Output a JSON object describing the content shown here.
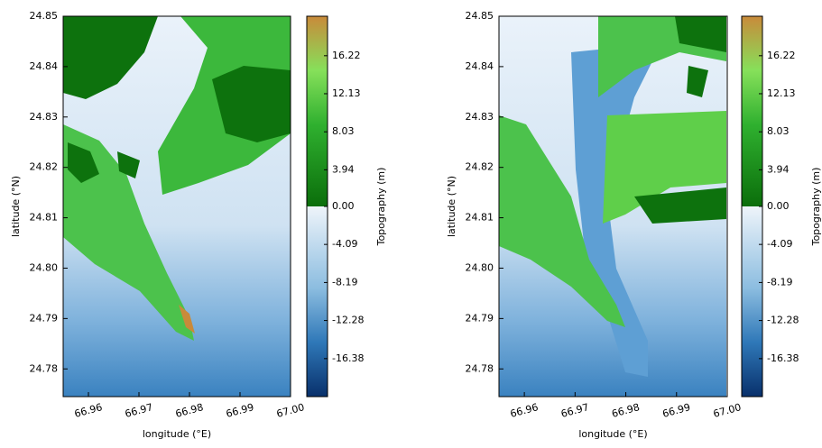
{
  "chart_data": [
    {
      "type": "heatmap",
      "xlabel": "longitude (°E)",
      "ylabel": "latitude (°N)",
      "xlim": [
        66.955,
        67.0
      ],
      "ylim": [
        24.7745,
        24.85
      ],
      "xticks": [
        66.96,
        66.97,
        66.98,
        66.99,
        {
          "value": 67.0,
          "label": "67.00"
        }
      ],
      "yticks": [
        24.78,
        24.79,
        {
          "value": 24.8,
          "label": "24.80"
        },
        24.81,
        24.82,
        24.83,
        24.84,
        24.85
      ],
      "colorbar": {
        "label": "Topography (m)",
        "clim": [
          -20.47,
          20.47
        ],
        "ticks": [
          16.22,
          12.13,
          8.03,
          3.94,
          {
            "value": 0,
            "label": "0.00"
          },
          -4.09,
          -8.19,
          -12.28,
          -16.38
        ],
        "colors": [
          "#08306b",
          "#2f78b8",
          "#8cbde0",
          "#eef4fa",
          "#0b6e0b",
          "#2fb02f",
          "#86e05a",
          "#c98a3a"
        ]
      }
    },
    {
      "type": "heatmap",
      "xlabel": "longitude (°E)",
      "ylabel": "latitude (°N)",
      "xlim": [
        66.955,
        67.0
      ],
      "ylim": [
        24.7745,
        24.85
      ],
      "xticks": [
        66.96,
        66.97,
        66.98,
        66.99,
        {
          "value": 67.0,
          "label": "67.00"
        }
      ],
      "yticks": [
        24.78,
        24.79,
        {
          "value": 24.8,
          "label": "24.80"
        },
        24.81,
        24.82,
        24.83,
        24.84,
        24.85
      ],
      "colorbar": {
        "label": "Topography (m)",
        "clim": [
          -20.47,
          20.47
        ],
        "ticks": [
          16.22,
          12.13,
          8.03,
          3.94,
          {
            "value": 0,
            "label": "0.00"
          },
          -4.09,
          -8.19,
          -12.28,
          -16.38
        ],
        "colors": [
          "#08306b",
          "#2f78b8",
          "#8cbde0",
          "#eef4fa",
          "#0b6e0b",
          "#2fb02f",
          "#86e05a",
          "#c98a3a"
        ]
      }
    }
  ]
}
